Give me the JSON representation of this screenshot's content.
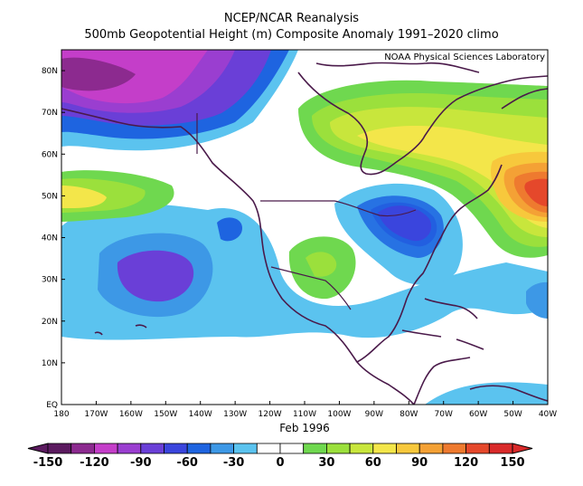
{
  "title": {
    "line1": "NCEP/NCAR Reanalysis",
    "line2": "500mb Geopotential Height (m) Composite Anomaly 1991–2020 climo"
  },
  "credit": "NOAA Physical Sciences Laboratory",
  "period_label": "Feb 1996",
  "map": {
    "lon_range": [
      -180,
      -40
    ],
    "lat_range": [
      0,
      85
    ],
    "lat_labels": [
      "80N",
      "70N",
      "60N",
      "50N",
      "40N",
      "30N",
      "20N",
      "10N",
      "EQ"
    ],
    "lon_labels": [
      "180",
      "170W",
      "160W",
      "150W",
      "140W",
      "130W",
      "120W",
      "110W",
      "100W",
      "90W",
      "80W",
      "70W",
      "60W",
      "50W",
      "40W"
    ]
  },
  "colorbar": {
    "labels": [
      "-150",
      "-120",
      "-90",
      "-60",
      "-30",
      "0",
      "30",
      "60",
      "90",
      "120",
      "150"
    ],
    "colors": [
      "#5b1a5f",
      "#8c2a8f",
      "#c43ec9",
      "#9a3ed0",
      "#6a3fd7",
      "#3a45dd",
      "#1e64e0",
      "#3d98e6",
      "#5bc3ef",
      "#ffffff",
      "#ffffff",
      "#6fd84f",
      "#9be03c",
      "#c8e63c",
      "#f3e64a",
      "#f7c83c",
      "#f4a135",
      "#ee7a2f",
      "#e5482b",
      "#d92a2a"
    ]
  },
  "colors": {
    "plot_border": "#000000",
    "coastline": "#4a1a4a"
  }
}
